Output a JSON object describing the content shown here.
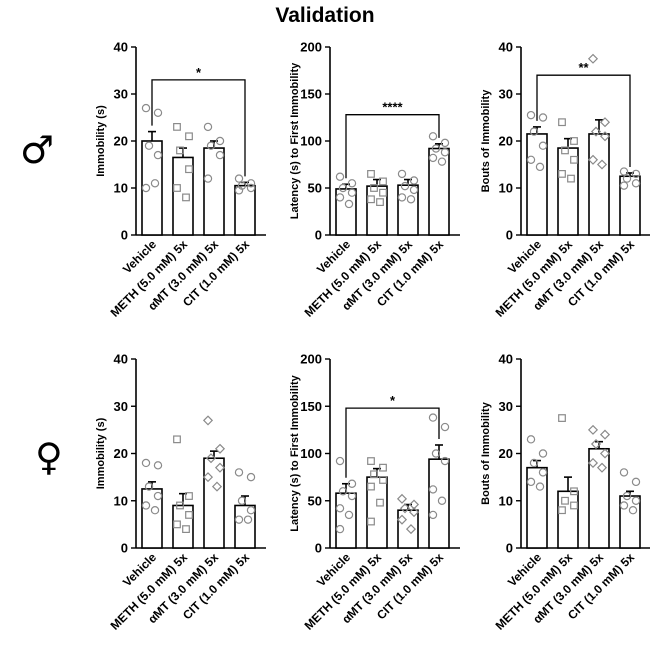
{
  "figure_title": "Validation",
  "sex_symbols": [
    "♂",
    "♀"
  ],
  "categories": [
    "Vehicle",
    "METH (5.0 mM) 5x",
    "αMT (3.0 mM) 5x",
    "CIT (1.0 mM) 5x"
  ],
  "chart_data": [
    {
      "type": "bar",
      "ylabel": "Immobility (s)",
      "ylim": [
        0,
        40
      ],
      "yticks": [
        0,
        10,
        20,
        30,
        40
      ],
      "categories": [
        "Vehicle",
        "METH (5.0 mM) 5x",
        "αMT (3.0 mM) 5x",
        "CIT (1.0 mM) 5x"
      ],
      "values": [
        20,
        16.5,
        18.5,
        10.5
      ],
      "errors": [
        2,
        2,
        1.5,
        0.7
      ],
      "markers": [
        "circle",
        "square",
        "circle",
        "circle"
      ],
      "points": [
        [
          27,
          26,
          19,
          17,
          10,
          11
        ],
        [
          23,
          21,
          18,
          14,
          10,
          8
        ],
        [
          23,
          20,
          19,
          17,
          12
        ],
        [
          12,
          11,
          10.5,
          10,
          9.5
        ]
      ],
      "significance": [
        {
          "from": 0,
          "to": 3,
          "label": "*",
          "y": 33
        }
      ]
    },
    {
      "type": "bar",
      "ylabel": "Latency (s) to First Immobility",
      "ylim": [
        0,
        200
      ],
      "yticks": [
        0,
        50,
        100,
        150,
        200
      ],
      "categories": [
        "Vehicle",
        "METH (5.0 mM) 5x",
        "αMT (3.0 mM) 5x",
        "CIT (1.0 mM) 5x"
      ],
      "values": [
        49,
        52,
        53,
        92
      ],
      "errors": [
        5,
        7,
        6,
        5
      ],
      "markers": [
        "circle",
        "square",
        "circle",
        "circle"
      ],
      "points": [
        [
          62,
          55,
          50,
          45,
          40,
          33
        ],
        [
          65,
          57,
          50,
          45,
          38,
          35
        ],
        [
          65,
          58,
          52,
          48,
          40,
          38
        ],
        [
          105,
          98,
          92,
          88,
          82,
          78
        ]
      ],
      "significance": [
        {
          "from": 0,
          "to": 3,
          "label": "****",
          "y": 128
        }
      ]
    },
    {
      "type": "bar",
      "ylabel": "Bouts of Immobility",
      "ylim": [
        0,
        40
      ],
      "yticks": [
        0,
        10,
        20,
        30,
        40
      ],
      "categories": [
        "Vehicle",
        "METH (5.0 mM) 5x",
        "αMT (3.0 mM) 5x",
        "CIT (1.0 mM) 5x"
      ],
      "values": [
        21.5,
        18.5,
        21.5,
        12.5
      ],
      "errors": [
        1.5,
        2,
        3,
        0.7
      ],
      "markers": [
        "circle",
        "square",
        "diamond",
        "circle"
      ],
      "points": [
        [
          25.5,
          25,
          22,
          19,
          16,
          14.5
        ],
        [
          24,
          20,
          18,
          16,
          13,
          12
        ],
        [
          37.5,
          24,
          22,
          21,
          16,
          15
        ],
        [
          13.5,
          13,
          12,
          11,
          10.5
        ]
      ],
      "significance": [
        {
          "from": 0,
          "to": 3,
          "label": "**",
          "y": 34
        }
      ]
    },
    {
      "type": "bar",
      "ylabel": "Immobility (s)",
      "ylim": [
        0,
        40
      ],
      "yticks": [
        0,
        10,
        20,
        30,
        40
      ],
      "categories": [
        "Vehicle",
        "METH (5.0 mM) 5x",
        "αMT (3.0 mM) 5x",
        "CIT (1.0 mM) 5x"
      ],
      "values": [
        12.5,
        9,
        19,
        9
      ],
      "errors": [
        1.5,
        2.5,
        1.5,
        2
      ],
      "markers": [
        "circle",
        "square",
        "diamond",
        "circle"
      ],
      "points": [
        [
          18,
          17.5,
          13,
          11,
          9,
          8
        ],
        [
          23,
          11,
          9,
          7,
          5,
          4
        ],
        [
          27,
          21,
          19,
          17,
          15,
          13
        ],
        [
          16,
          15,
          10,
          8,
          6,
          6
        ]
      ],
      "significance": []
    },
    {
      "type": "bar",
      "ylabel": "Latency (s) to First Immobility",
      "ylim": [
        0,
        200
      ],
      "yticks": [
        0,
        50,
        100,
        150,
        200
      ],
      "categories": [
        "Vehicle",
        "METH (5.0 mM) 5x",
        "αMT (3.0 mM) 5x",
        "CIT (1.0 mM) 5x"
      ],
      "values": [
        58,
        75,
        40,
        94
      ],
      "errors": [
        10,
        9,
        6,
        15
      ],
      "markers": [
        "circle",
        "square",
        "diamond",
        "circle"
      ],
      "points": [
        [
          92,
          68,
          60,
          55,
          42,
          35,
          20
        ],
        [
          92,
          85,
          78,
          72,
          65,
          48,
          28
        ],
        [
          52,
          46,
          42,
          38,
          30,
          20
        ],
        [
          138,
          128,
          100,
          92,
          62,
          50,
          35
        ]
      ],
      "significance": [
        {
          "from": 0,
          "to": 3,
          "label": "*",
          "y": 148
        }
      ]
    },
    {
      "type": "bar",
      "ylabel": "Bouts of Immobility",
      "ylim": [
        0,
        40
      ],
      "yticks": [
        0,
        10,
        20,
        30,
        40
      ],
      "categories": [
        "Vehicle",
        "METH (5.0 mM) 5x",
        "αMT (3.0 mM) 5x",
        "CIT (1.0 mM) 5x"
      ],
      "values": [
        17,
        12,
        21,
        11
      ],
      "errors": [
        1.5,
        3,
        1.5,
        1
      ],
      "markers": [
        "circle",
        "square",
        "diamond",
        "circle"
      ],
      "points": [
        [
          23,
          20,
          18,
          16,
          14,
          13
        ],
        [
          27.5,
          12,
          10,
          9,
          8
        ],
        [
          25,
          24,
          22,
          20,
          18,
          17
        ],
        [
          16,
          14,
          11,
          10,
          9,
          8
        ]
      ],
      "significance": []
    }
  ]
}
